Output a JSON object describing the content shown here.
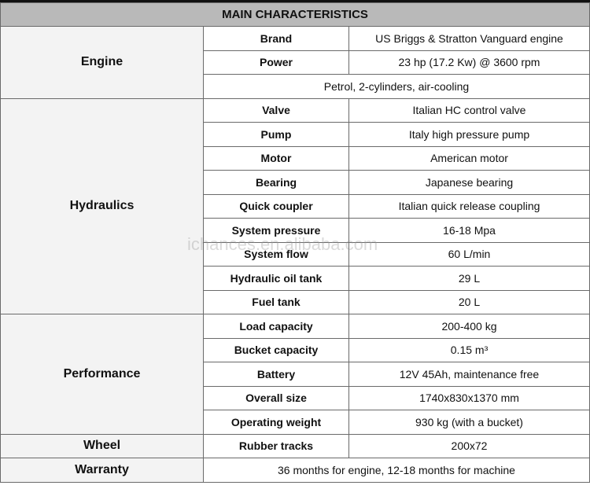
{
  "title": "MAIN CHARACTERISTICS",
  "watermark": "ichances.en.alibaba.com",
  "groups": [
    {
      "name": "Engine",
      "rows": [
        {
          "label": "Brand",
          "value": "US Briggs & Stratton Vanguard engine"
        },
        {
          "label": "Power",
          "value": "23 hp (17.2 Kw) @ 3600 rpm"
        },
        {
          "label": "",
          "value": "Petrol, 2-cylinders, air-cooling",
          "span": true
        }
      ]
    },
    {
      "name": "Hydraulics",
      "rows": [
        {
          "label": "Valve",
          "value": "Italian HC control valve"
        },
        {
          "label": "Pump",
          "value": "Italy high pressure pump"
        },
        {
          "label": "Motor",
          "value": "American motor"
        },
        {
          "label": "Bearing",
          "value": "Japanese bearing"
        },
        {
          "label": "Quick coupler",
          "value": "Italian quick release coupling"
        },
        {
          "label": "System pressure",
          "value": "16-18 Mpa"
        },
        {
          "label": "System flow",
          "value": "60 L/min"
        },
        {
          "label": "Hydraulic oil tank",
          "value": "29 L"
        },
        {
          "label": "Fuel tank",
          "value": "20 L"
        }
      ]
    },
    {
      "name": "Performance",
      "rows": [
        {
          "label": "Load capacity",
          "value": "200-400 kg"
        },
        {
          "label": "Bucket capacity",
          "value": "0.15 m³"
        },
        {
          "label": "Battery",
          "value": "12V 45Ah, maintenance free"
        },
        {
          "label": "Overall size",
          "value": "1740x830x1370 mm"
        },
        {
          "label": "Operating weight",
          "value": "930 kg (with a bucket)"
        }
      ]
    },
    {
      "name": "Wheel",
      "rows": [
        {
          "label": "Rubber tracks",
          "value": "200x72"
        }
      ]
    },
    {
      "name": "Warranty",
      "rows": [
        {
          "label": "",
          "value": "36 months for engine, 12-18 months for machine",
          "span": true
        }
      ]
    }
  ]
}
